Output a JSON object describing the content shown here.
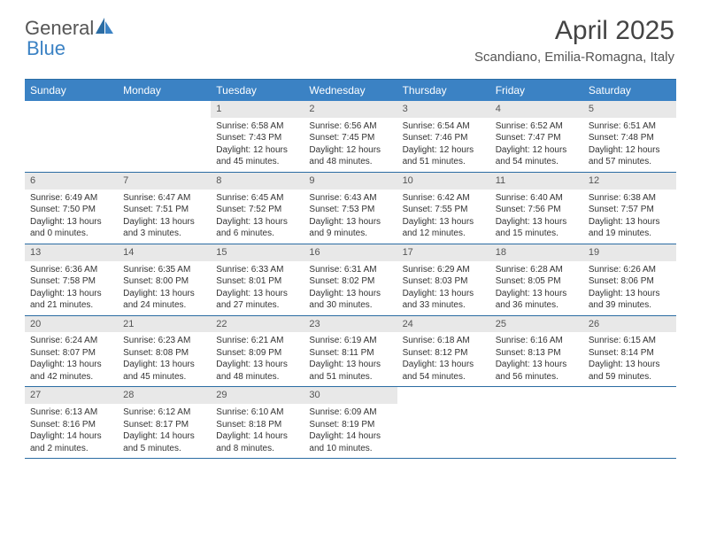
{
  "logo": {
    "text1": "General",
    "text2": "Blue"
  },
  "title": "April 2025",
  "subtitle": "Scandiano, Emilia-Romagna, Italy",
  "colors": {
    "header_bg": "#3b82c4",
    "border": "#2b6ca3",
    "daynum_bg": "#e8e8e8",
    "text": "#333333"
  },
  "weekdays": [
    "Sunday",
    "Monday",
    "Tuesday",
    "Wednesday",
    "Thursday",
    "Friday",
    "Saturday"
  ],
  "weeks": [
    [
      null,
      null,
      {
        "n": "1",
        "sunrise": "6:58 AM",
        "sunset": "7:43 PM",
        "daylight": "12 hours and 45 minutes."
      },
      {
        "n": "2",
        "sunrise": "6:56 AM",
        "sunset": "7:45 PM",
        "daylight": "12 hours and 48 minutes."
      },
      {
        "n": "3",
        "sunrise": "6:54 AM",
        "sunset": "7:46 PM",
        "daylight": "12 hours and 51 minutes."
      },
      {
        "n": "4",
        "sunrise": "6:52 AM",
        "sunset": "7:47 PM",
        "daylight": "12 hours and 54 minutes."
      },
      {
        "n": "5",
        "sunrise": "6:51 AM",
        "sunset": "7:48 PM",
        "daylight": "12 hours and 57 minutes."
      }
    ],
    [
      {
        "n": "6",
        "sunrise": "6:49 AM",
        "sunset": "7:50 PM",
        "daylight": "13 hours and 0 minutes."
      },
      {
        "n": "7",
        "sunrise": "6:47 AM",
        "sunset": "7:51 PM",
        "daylight": "13 hours and 3 minutes."
      },
      {
        "n": "8",
        "sunrise": "6:45 AM",
        "sunset": "7:52 PM",
        "daylight": "13 hours and 6 minutes."
      },
      {
        "n": "9",
        "sunrise": "6:43 AM",
        "sunset": "7:53 PM",
        "daylight": "13 hours and 9 minutes."
      },
      {
        "n": "10",
        "sunrise": "6:42 AM",
        "sunset": "7:55 PM",
        "daylight": "13 hours and 12 minutes."
      },
      {
        "n": "11",
        "sunrise": "6:40 AM",
        "sunset": "7:56 PM",
        "daylight": "13 hours and 15 minutes."
      },
      {
        "n": "12",
        "sunrise": "6:38 AM",
        "sunset": "7:57 PM",
        "daylight": "13 hours and 19 minutes."
      }
    ],
    [
      {
        "n": "13",
        "sunrise": "6:36 AM",
        "sunset": "7:58 PM",
        "daylight": "13 hours and 21 minutes."
      },
      {
        "n": "14",
        "sunrise": "6:35 AM",
        "sunset": "8:00 PM",
        "daylight": "13 hours and 24 minutes."
      },
      {
        "n": "15",
        "sunrise": "6:33 AM",
        "sunset": "8:01 PM",
        "daylight": "13 hours and 27 minutes."
      },
      {
        "n": "16",
        "sunrise": "6:31 AM",
        "sunset": "8:02 PM",
        "daylight": "13 hours and 30 minutes."
      },
      {
        "n": "17",
        "sunrise": "6:29 AM",
        "sunset": "8:03 PM",
        "daylight": "13 hours and 33 minutes."
      },
      {
        "n": "18",
        "sunrise": "6:28 AM",
        "sunset": "8:05 PM",
        "daylight": "13 hours and 36 minutes."
      },
      {
        "n": "19",
        "sunrise": "6:26 AM",
        "sunset": "8:06 PM",
        "daylight": "13 hours and 39 minutes."
      }
    ],
    [
      {
        "n": "20",
        "sunrise": "6:24 AM",
        "sunset": "8:07 PM",
        "daylight": "13 hours and 42 minutes."
      },
      {
        "n": "21",
        "sunrise": "6:23 AM",
        "sunset": "8:08 PM",
        "daylight": "13 hours and 45 minutes."
      },
      {
        "n": "22",
        "sunrise": "6:21 AM",
        "sunset": "8:09 PM",
        "daylight": "13 hours and 48 minutes."
      },
      {
        "n": "23",
        "sunrise": "6:19 AM",
        "sunset": "8:11 PM",
        "daylight": "13 hours and 51 minutes."
      },
      {
        "n": "24",
        "sunrise": "6:18 AM",
        "sunset": "8:12 PM",
        "daylight": "13 hours and 54 minutes."
      },
      {
        "n": "25",
        "sunrise": "6:16 AM",
        "sunset": "8:13 PM",
        "daylight": "13 hours and 56 minutes."
      },
      {
        "n": "26",
        "sunrise": "6:15 AM",
        "sunset": "8:14 PM",
        "daylight": "13 hours and 59 minutes."
      }
    ],
    [
      {
        "n": "27",
        "sunrise": "6:13 AM",
        "sunset": "8:16 PM",
        "daylight": "14 hours and 2 minutes."
      },
      {
        "n": "28",
        "sunrise": "6:12 AM",
        "sunset": "8:17 PM",
        "daylight": "14 hours and 5 minutes."
      },
      {
        "n": "29",
        "sunrise": "6:10 AM",
        "sunset": "8:18 PM",
        "daylight": "14 hours and 8 minutes."
      },
      {
        "n": "30",
        "sunrise": "6:09 AM",
        "sunset": "8:19 PM",
        "daylight": "14 hours and 10 minutes."
      },
      null,
      null,
      null
    ]
  ]
}
